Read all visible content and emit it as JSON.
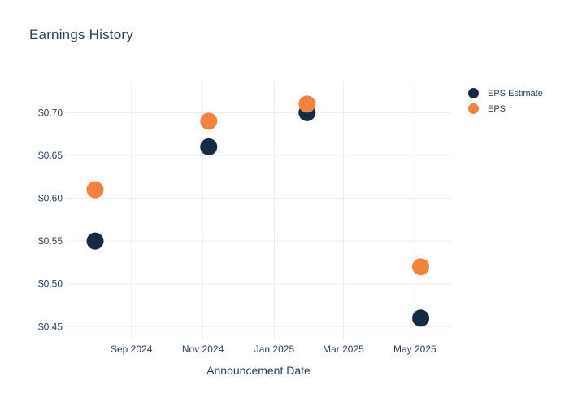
{
  "chart_data": {
    "type": "scatter",
    "title": "Earnings History",
    "xlabel": "Announcement Date",
    "ylabel": "",
    "legend_position": "right",
    "grid": true,
    "background_color": "#ffffff",
    "grid_color": "#ebeef5",
    "text_color": "#2a3f5f",
    "x_axis": {
      "min": "2024-07-07",
      "max": "2025-06-01",
      "ticks": [
        {
          "date": "2024-09-01",
          "label": "Sep 2024"
        },
        {
          "date": "2024-11-01",
          "label": "Nov 2024"
        },
        {
          "date": "2025-01-01",
          "label": "Jan 2025"
        },
        {
          "date": "2025-03-01",
          "label": "Mar 2025"
        },
        {
          "date": "2025-05-01",
          "label": "May 2025"
        }
      ]
    },
    "y_axis": {
      "min": 0.437,
      "max": 0.7374,
      "ticks": [
        {
          "value": 0.45,
          "label": "$0.45"
        },
        {
          "value": 0.5,
          "label": "$0.50"
        },
        {
          "value": 0.55,
          "label": "$0.55"
        },
        {
          "value": 0.6,
          "label": "$0.60"
        },
        {
          "value": 0.65,
          "label": "$0.65"
        },
        {
          "value": 0.7,
          "label": "$0.70"
        }
      ]
    },
    "x_dates": [
      "2024-08-01",
      "2024-11-06",
      "2025-01-29",
      "2025-05-06"
    ],
    "series": [
      {
        "name": "EPS Estimate",
        "color": "#172a45",
        "values": [
          0.55,
          0.66,
          0.7,
          0.46
        ]
      },
      {
        "name": "EPS",
        "color": "#f2823d",
        "values": [
          0.61,
          0.69,
          0.71,
          0.52
        ]
      }
    ]
  }
}
